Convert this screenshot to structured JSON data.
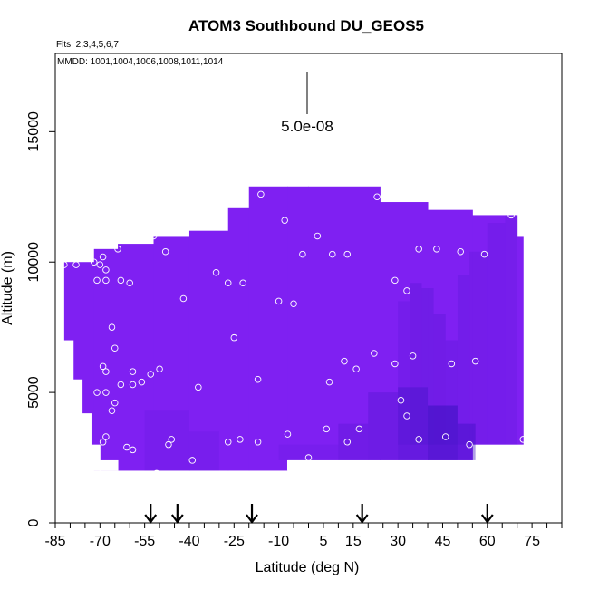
{
  "chart_data": {
    "type": "heatmap",
    "title": "ATOM3 Southbound DU_GEOS5",
    "flights_label": "Flts: 2,3,4,5,6,7",
    "dates_label": "MMDD: 1001,1004,1006,1008,1011,1014",
    "scale_label": "5.0e-08",
    "xlabel": "Latitude (deg N)",
    "ylabel": "Altitude (m)",
    "xlim": [
      -85,
      85
    ],
    "ylim": [
      0,
      18000
    ],
    "x_ticks": [
      "-85",
      "-70",
      "-55",
      "-40",
      "-25",
      "-10",
      "5",
      "15",
      "30",
      "45",
      "60",
      "75"
    ],
    "x_tick_values": [
      -85,
      -70,
      -55,
      -40,
      -25,
      -10,
      5,
      15,
      30,
      45,
      60,
      75
    ],
    "y_ticks": [
      "0",
      "5000",
      "10000",
      "15000"
    ],
    "y_tick_values": [
      0,
      5000,
      10000,
      15000
    ],
    "arrows_lat": [
      -53,
      -44,
      -19,
      18,
      60
    ],
    "colors": {
      "field_base": "#7f20f2",
      "field_dark": "#3a10c0",
      "point_stroke": "#ffffff",
      "axis": "#000000"
    },
    "points": [
      [
        -82,
        9900
      ],
      [
        -78,
        9900
      ],
      [
        -72,
        10000
      ],
      [
        -70,
        9900
      ],
      [
        -69,
        10200
      ],
      [
        -68,
        9700
      ],
      [
        -71,
        9300
      ],
      [
        -68,
        9300
      ],
      [
        -64,
        10500
      ],
      [
        -63,
        9300
      ],
      [
        -60,
        9200
      ],
      [
        -56,
        10900
      ],
      [
        -52,
        11000
      ],
      [
        -48,
        10400
      ],
      [
        -42,
        8600
      ],
      [
        -31,
        9600
      ],
      [
        -27,
        9200
      ],
      [
        -22,
        9200
      ],
      [
        -16,
        12600
      ],
      [
        -8,
        11600
      ],
      [
        -2,
        10300
      ],
      [
        3,
        11000
      ],
      [
        8,
        10300
      ],
      [
        13,
        10300
      ],
      [
        23,
        12500
      ],
      [
        29,
        9300
      ],
      [
        33,
        8900
      ],
      [
        37,
        10500
      ],
      [
        43,
        10500
      ],
      [
        51,
        10400
      ],
      [
        59,
        10300
      ],
      [
        68,
        11800
      ],
      [
        -66,
        7500
      ],
      [
        -65,
        6700
      ],
      [
        -69,
        6000
      ],
      [
        -68,
        5800
      ],
      [
        -63,
        5300
      ],
      [
        -59,
        5800
      ],
      [
        -53,
        5700
      ],
      [
        -50,
        5900
      ],
      [
        -56,
        5400
      ],
      [
        -59,
        5300
      ],
      [
        -65,
        4600
      ],
      [
        -66,
        4300
      ],
      [
        -68,
        5000
      ],
      [
        -71,
        5000
      ],
      [
        -37,
        5200
      ],
      [
        -25,
        7100
      ],
      [
        -17,
        5500
      ],
      [
        -10,
        8500
      ],
      [
        -5,
        8400
      ],
      [
        7,
        5400
      ],
      [
        12,
        6200
      ],
      [
        16,
        5900
      ],
      [
        22,
        6500
      ],
      [
        29,
        6100
      ],
      [
        35,
        6400
      ],
      [
        48,
        6100
      ],
      [
        56,
        6200
      ],
      [
        -68,
        3300
      ],
      [
        -69,
        3100
      ],
      [
        -61,
        2900
      ],
      [
        -59,
        2800
      ],
      [
        -46,
        3200
      ],
      [
        -47,
        3000
      ],
      [
        -39,
        2400
      ],
      [
        -27,
        3100
      ],
      [
        -23,
        3200
      ],
      [
        -17,
        3100
      ],
      [
        -7,
        3400
      ],
      [
        0,
        2500
      ],
      [
        6,
        3600
      ],
      [
        13,
        3100
      ],
      [
        17,
        3600
      ],
      [
        31,
        4700
      ],
      [
        33,
        4100
      ],
      [
        37,
        3200
      ],
      [
        46,
        3300
      ],
      [
        54,
        3000
      ],
      [
        72,
        3200
      ],
      [
        -51,
        1900
      ]
    ]
  }
}
